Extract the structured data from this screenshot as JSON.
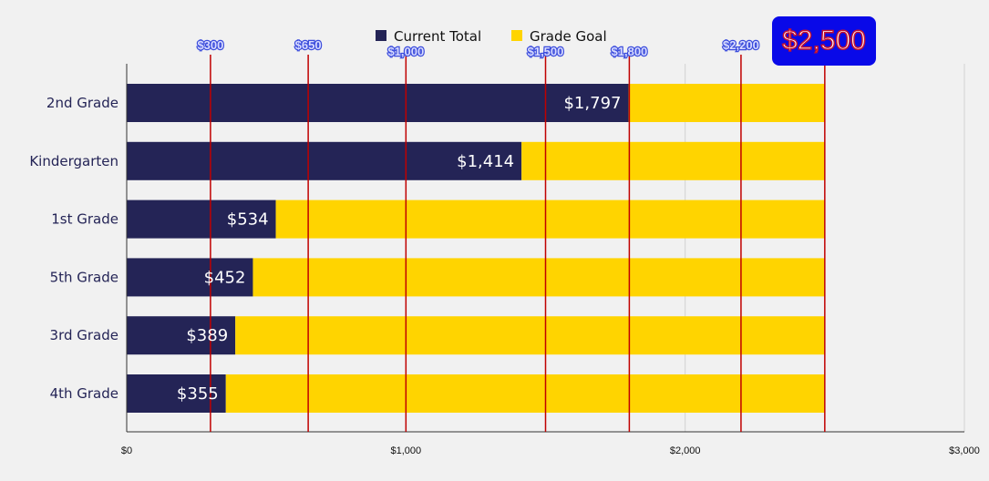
{
  "chart_data": {
    "type": "bar",
    "orientation": "horizontal",
    "stacked": true,
    "categories": [
      "2nd Grade",
      "Kindergarten",
      "1st Grade",
      "5th Grade",
      "3rd Grade",
      "4th Grade"
    ],
    "series": [
      {
        "name": "Current Total",
        "color": "#242456",
        "values": [
          1797,
          1414,
          534,
          452,
          389,
          355
        ]
      },
      {
        "name": "Grade Goal",
        "color": "#ffd400",
        "values": [
          703,
          1086,
          1966,
          2048,
          2111,
          2145
        ]
      }
    ],
    "data_labels": [
      "$1,797",
      "$1,414",
      "$534",
      "$452",
      "$389",
      "$355"
    ],
    "xlim": [
      0,
      3000
    ],
    "x_ticks": [
      0,
      1000,
      2000,
      3000
    ],
    "x_tick_labels": [
      "$0",
      "$1,000",
      "$2,000",
      "$3,000"
    ],
    "milestones": [
      {
        "value": 300,
        "label": "$300"
      },
      {
        "value": 650,
        "label": "$650"
      },
      {
        "value": 1000,
        "label": "$1,000"
      },
      {
        "value": 1500,
        "label": "$1,500"
      },
      {
        "value": 1800,
        "label": "$1,800"
      },
      {
        "value": 2200,
        "label": "$2,200"
      },
      {
        "value": 2500,
        "label": "$2,500"
      }
    ],
    "milestone_line_color": "#c00000",
    "badge_color": "#0909e8",
    "legend_position": "top",
    "grid": true
  }
}
